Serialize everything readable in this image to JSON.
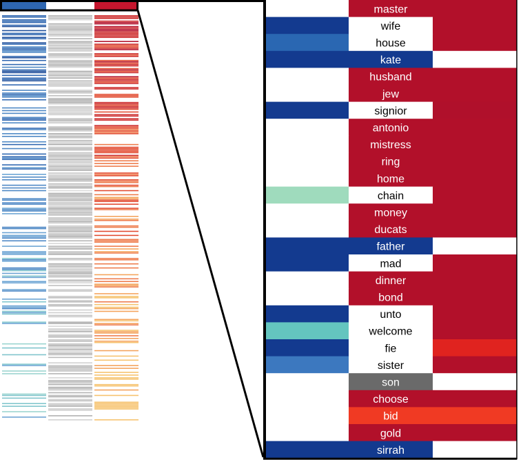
{
  "chart_data": {
    "type": "heatmap",
    "title": "",
    "xlabel": "",
    "ylabel": "",
    "legend": "none",
    "grid": false,
    "colors": {
      "blue_dark": "#133a8f",
      "blue_mid": "#2a67b2",
      "blue_light": "#3c78bf",
      "mint": "#9fdbbd",
      "teal": "#64c5bf",
      "red": "#b2102a",
      "red_dark": "#b0102b",
      "red_bright": "#e0231f",
      "orange_red": "#f03a23",
      "gray": "#6a6a6a",
      "white": "#ffffff"
    },
    "detail_rows": [
      {
        "word": "master",
        "left": "white",
        "middle": "red",
        "right": "red"
      },
      {
        "word": "wife",
        "left": "blue_dark",
        "middle": "white",
        "right": "red"
      },
      {
        "word": "house",
        "left": "blue_mid",
        "middle": "white",
        "right": "red"
      },
      {
        "word": "kate",
        "left": "blue_dark",
        "middle": "blue_dark",
        "right": "white"
      },
      {
        "word": "husband",
        "left": "white",
        "middle": "red",
        "right": "red"
      },
      {
        "word": "jew",
        "left": "white",
        "middle": "red",
        "right": "red"
      },
      {
        "word": "signior",
        "left": "blue_dark",
        "middle": "white",
        "right": "red_dark"
      },
      {
        "word": "antonio",
        "left": "white",
        "middle": "red",
        "right": "red"
      },
      {
        "word": "mistress",
        "left": "white",
        "middle": "red",
        "right": "red"
      },
      {
        "word": "ring",
        "left": "white",
        "middle": "red",
        "right": "red"
      },
      {
        "word": "home",
        "left": "white",
        "middle": "red",
        "right": "red"
      },
      {
        "word": "chain",
        "left": "mint",
        "middle": "white",
        "right": "red"
      },
      {
        "word": "money",
        "left": "white",
        "middle": "red",
        "right": "red"
      },
      {
        "word": "ducats",
        "left": "white",
        "middle": "red",
        "right": "red"
      },
      {
        "word": "father",
        "left": "blue_dark",
        "middle": "blue_dark",
        "right": "white"
      },
      {
        "word": "mad",
        "left": "blue_dark",
        "middle": "white",
        "right": "red"
      },
      {
        "word": "dinner",
        "left": "white",
        "middle": "red",
        "right": "red"
      },
      {
        "word": "bond",
        "left": "white",
        "middle": "red",
        "right": "red"
      },
      {
        "word": "unto",
        "left": "blue_dark",
        "middle": "white",
        "right": "red"
      },
      {
        "word": "welcome",
        "left": "teal",
        "middle": "white",
        "right": "red"
      },
      {
        "word": "fie",
        "left": "blue_dark",
        "middle": "white",
        "right": "red_bright"
      },
      {
        "word": "sister",
        "left": "blue_light",
        "middle": "white",
        "right": "red"
      },
      {
        "word": "son",
        "left": "white",
        "middle": "gray",
        "right": "white"
      },
      {
        "word": "choose",
        "left": "white",
        "middle": "red",
        "right": "red"
      },
      {
        "word": "bid",
        "left": "white",
        "middle": "orange_red",
        "right": "orange_red"
      },
      {
        "word": "gold",
        "left": "white",
        "middle": "red",
        "right": "red"
      },
      {
        "word": "sirrah",
        "left": "blue_dark",
        "middle": "blue_dark",
        "right": "white"
      }
    ],
    "overview": {
      "columns": [
        "blue",
        "gray",
        "red"
      ],
      "row_count": 300,
      "zoomed_rows": 27
    }
  }
}
